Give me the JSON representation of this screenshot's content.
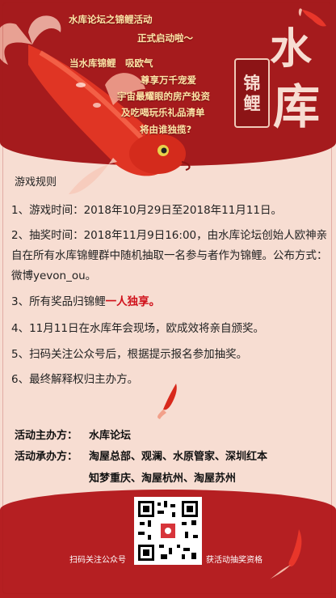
{
  "intro": {
    "line1": "水库论坛之锦鲤活动",
    "line2": "正式启动啦～",
    "line3": "当水库锦鲤　吸欧气",
    "line4": "尊享万千宠爱",
    "line5": "宇宙最耀眼的房产投资",
    "line6": "及吃喝玩乐礼品清单",
    "line7": "将由谁独揽?"
  },
  "title": {
    "char1": "水",
    "char2": "库",
    "seal1": "锦",
    "seal2": "鲤"
  },
  "rules": {
    "heading": "游戏规则",
    "r1": "1、游戏时间：2018年10月29日至2018年11月11日。",
    "r2": "2、抽奖时间：2018年11月9日16:00，由水库论坛创始人欧神亲自在所有水库锦鲤群中随机抽取一名参与者作为锦鲤。公布方式：微博yevon_ou。",
    "r3_prefix": "3、所有奖品归锦鲤",
    "r3_highlight": "一人独享。",
    "r4": "4、11月11日在水库年会现场，欧成效将亲自颁奖。",
    "r5": "5、扫码关注公众号后，根据提示报名参加抽奖。",
    "r6": "6、最终解释权归主办方。"
  },
  "organizers": {
    "host_label": "活动主办方：",
    "host": "水库论坛",
    "co_label": "活动承办方：",
    "co_line1": "淘屋总部、观澜、水原管家、深圳红本",
    "co_line2": "知梦重庆、淘屋杭州、淘屋苏州"
  },
  "footer": {
    "left_caption": "扫码关注公众号",
    "right_caption": "获活动抽奖资格"
  },
  "colors": {
    "band": "#a51b1d",
    "background": "#f7ddd2",
    "highlight": "#d0101a"
  }
}
